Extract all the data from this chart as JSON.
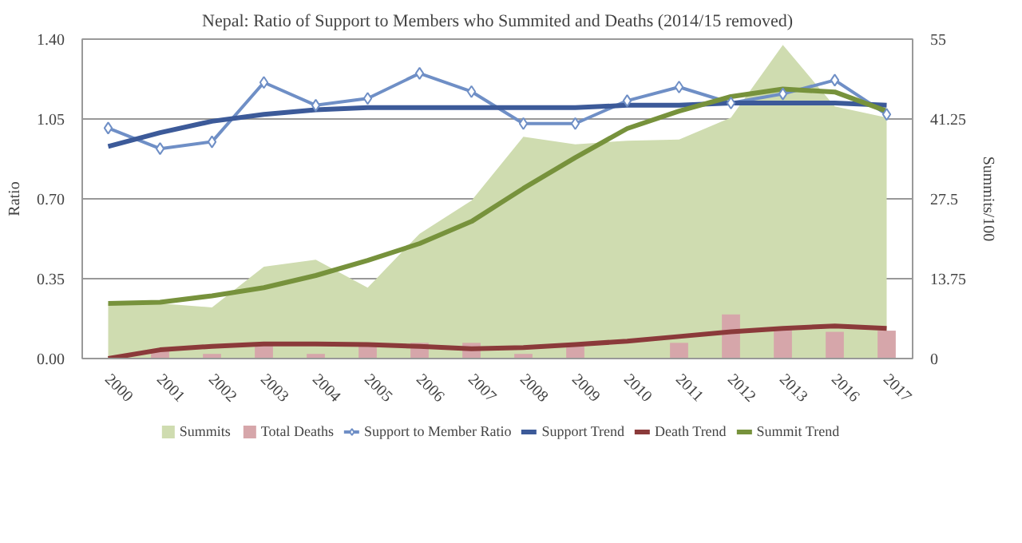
{
  "chart_data": {
    "type": "line",
    "title": "Nepal: Ratio of Support to Members who Summited and Deaths (2014/15 removed)",
    "ylabel": "Ratio",
    "y2label": "Summits/100",
    "categories": [
      "2000",
      "2001",
      "2002",
      "2003",
      "2004",
      "2005",
      "2006",
      "2007",
      "2008",
      "2009",
      "2010",
      "2011",
      "2012",
      "2013",
      "2016",
      "2017"
    ],
    "ylim": [
      0,
      1.4
    ],
    "yticks": [
      {
        "value": 0,
        "label": "0.00"
      },
      {
        "value": 0.35,
        "label": "0.35"
      },
      {
        "value": 0.7,
        "label": "0.70"
      },
      {
        "value": 1.05,
        "label": "1.05"
      },
      {
        "value": 1.4,
        "label": "1.40"
      }
    ],
    "y2lim": [
      0,
      55
    ],
    "y2ticks": [
      0,
      13.75,
      27.5,
      41.25,
      55
    ],
    "grid": "y",
    "legend": "bottom",
    "series": [
      {
        "name": "Summits",
        "type": "area",
        "axis": "y2",
        "color": "#cfdcb0",
        "values": [
          9.5,
          9.5,
          8.8,
          15.8,
          17,
          12.2,
          21.5,
          27.2,
          38.2,
          36.9,
          37.5,
          37.7,
          41.5,
          54,
          43.4,
          41.5
        ]
      },
      {
        "name": "Total Deaths",
        "type": "bar",
        "axis": "y2",
        "color": "#d6a6aa",
        "values": [
          0,
          1.3,
          0.8,
          2.5,
          0.8,
          2.5,
          2.7,
          2.7,
          0.8,
          2.1,
          0,
          2.7,
          7.6,
          5.5,
          4.6,
          4.8
        ]
      },
      {
        "name": "Support to Member Ratio",
        "marker": "diamond",
        "color": "#6f8fc6",
        "values": [
          1.01,
          0.92,
          0.95,
          1.21,
          1.11,
          1.14,
          1.25,
          1.17,
          1.03,
          1.03,
          1.13,
          1.19,
          1.12,
          1.16,
          1.22,
          1.07
        ]
      },
      {
        "name": "Support Trend",
        "color": "#3c5a99",
        "values": [
          0.93,
          0.99,
          1.04,
          1.07,
          1.09,
          1.1,
          1.1,
          1.1,
          1.1,
          1.1,
          1.11,
          1.11,
          1.12,
          1.12,
          1.12,
          1.11
        ]
      },
      {
        "name": "Death Trend",
        "axis": "y2",
        "color": "#8b3a3a",
        "values": [
          0,
          1.5,
          2.1,
          2.5,
          2.5,
          2.4,
          2.1,
          1.7,
          1.9,
          2.4,
          3.0,
          3.8,
          4.6,
          5.2,
          5.6,
          5.2
        ]
      },
      {
        "name": "Summit Trend",
        "axis": "y2",
        "color": "#77923c",
        "values": [
          9.5,
          9.7,
          10.8,
          12.2,
          14.3,
          16.9,
          19.8,
          23.6,
          29.3,
          34.6,
          39.6,
          42.6,
          45.1,
          46.4,
          45.9,
          42.6
        ]
      }
    ]
  }
}
